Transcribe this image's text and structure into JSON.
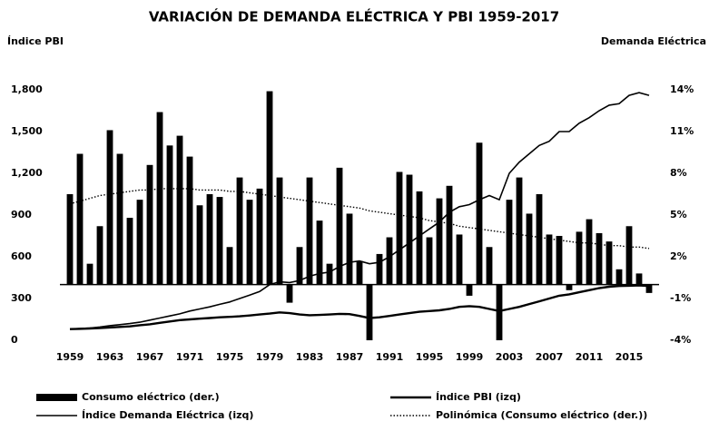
{
  "chart_data": {
    "type": "bar",
    "title": "VARIACIÓN DE DEMANDA ELÉCTRICA Y PBI 1959-2017",
    "ylabel": "Índice PBI",
    "y2label": "Demanda Eléctrica",
    "x": [
      1959,
      1960,
      1961,
      1962,
      1963,
      1964,
      1965,
      1966,
      1967,
      1968,
      1969,
      1970,
      1971,
      1972,
      1973,
      1974,
      1975,
      1976,
      1977,
      1978,
      1979,
      1980,
      1981,
      1982,
      1983,
      1984,
      1985,
      1986,
      1987,
      1988,
      1989,
      1990,
      1991,
      1992,
      1993,
      1994,
      1995,
      1996,
      1997,
      1998,
      1999,
      2000,
      2001,
      2002,
      2003,
      2004,
      2005,
      2006,
      2007,
      2008,
      2009,
      2010,
      2011,
      2012,
      2013,
      2014,
      2015,
      2016,
      2017
    ],
    "xlim": [
      1958,
      2018
    ],
    "xticks": [
      1959,
      1963,
      1967,
      1971,
      1975,
      1979,
      1983,
      1987,
      1991,
      1995,
      1999,
      2003,
      2007,
      2011,
      2015
    ],
    "ylim": [
      0,
      1800
    ],
    "yticks": [
      0,
      300,
      600,
      900,
      {
        "value": 1200,
        "label": "1,200"
      },
      {
        "value": 1500,
        "label": "1,500"
      },
      {
        "value": 1800,
        "label": "1,800"
      }
    ],
    "y2lim": [
      -4,
      14
    ],
    "y2ticks": [
      {
        "value": -4,
        "label": "-4%"
      },
      {
        "value": -1,
        "label": "-1%"
      },
      {
        "value": 2,
        "label": "2%"
      },
      {
        "value": 5,
        "label": "5%"
      },
      {
        "value": 8,
        "label": "8%"
      },
      {
        "value": 11,
        "label": "11%"
      },
      {
        "value": 14,
        "label": "14%"
      }
    ],
    "series": [
      {
        "name": "Consumo eléctrico (der.)",
        "type": "bar",
        "axis": "y2",
        "color": "#000000",
        "values": [
          6.5,
          9.4,
          1.5,
          4.2,
          11.1,
          9.4,
          4.8,
          6.1,
          8.6,
          12.4,
          10.0,
          10.7,
          9.2,
          5.7,
          6.5,
          6.3,
          2.7,
          7.7,
          6.1,
          6.9,
          13.9,
          7.7,
          -1.3,
          2.7,
          7.7,
          4.6,
          1.5,
          8.4,
          5.1,
          1.7,
          -4.0,
          2.2,
          3.4,
          8.1,
          7.9,
          6.7,
          3.4,
          6.2,
          7.1,
          3.6,
          -0.8,
          10.2,
          2.7,
          -4.0,
          6.1,
          7.7,
          5.1,
          6.5,
          3.6,
          3.5,
          -0.4,
          3.8,
          4.7,
          3.7,
          3.1,
          1.1,
          4.2,
          0.8,
          -0.6
        ]
      },
      {
        "name": "Índice PBI (izq)",
        "type": "line",
        "axis": "y",
        "color": "#000000",
        "line_width": 2.4,
        "values": [
          80,
          82,
          85,
          88,
          92,
          96,
          100,
          108,
          115,
          125,
          135,
          145,
          150,
          155,
          160,
          165,
          168,
          172,
          178,
          185,
          192,
          200,
          195,
          185,
          180,
          182,
          185,
          190,
          188,
          175,
          160,
          165,
          175,
          185,
          195,
          205,
          210,
          215,
          225,
          240,
          245,
          240,
          225,
          210,
          225,
          240,
          260,
          280,
          300,
          320,
          330,
          345,
          360,
          375,
          385,
          390,
          392,
          394,
          390
        ]
      },
      {
        "name": "Índice Demanda Eléctrica (izq)",
        "type": "line",
        "axis": "y",
        "color": "#000000",
        "line_width": 1.6,
        "values": [
          80,
          85,
          88,
          95,
          105,
          112,
          120,
          130,
          145,
          160,
          175,
          190,
          210,
          225,
          240,
          258,
          275,
          300,
          325,
          350,
          400,
          420,
          415,
          430,
          460,
          480,
          490,
          530,
          560,
          570,
          550,
          560,
          600,
          650,
          700,
          750,
          800,
          850,
          920,
          960,
          975,
          1010,
          1040,
          1010,
          1200,
          1280,
          1340,
          1400,
          1430,
          1500,
          1500,
          1560,
          1600,
          1650,
          1690,
          1700,
          1760,
          1780,
          1760
        ]
      },
      {
        "name": "Polinómica (Consumo eléctrico (der.))",
        "type": "line",
        "axis": "y2",
        "color": "#000000",
        "line_width": 1.4,
        "style": "dotted",
        "values": [
          5.8,
          6.0,
          6.2,
          6.4,
          6.5,
          6.6,
          6.7,
          6.8,
          6.8,
          6.9,
          6.9,
          6.9,
          6.9,
          6.8,
          6.8,
          6.8,
          6.7,
          6.7,
          6.6,
          6.5,
          6.4,
          6.3,
          6.2,
          6.1,
          6.0,
          5.9,
          5.8,
          5.7,
          5.6,
          5.5,
          5.3,
          5.2,
          5.1,
          5.0,
          4.9,
          4.8,
          4.6,
          4.5,
          4.4,
          4.2,
          4.1,
          4.0,
          3.9,
          3.8,
          3.7,
          3.6,
          3.5,
          3.4,
          3.3,
          3.2,
          3.1,
          3.0,
          3.0,
          2.9,
          2.8,
          2.8,
          2.7,
          2.7,
          2.6
        ]
      }
    ]
  }
}
